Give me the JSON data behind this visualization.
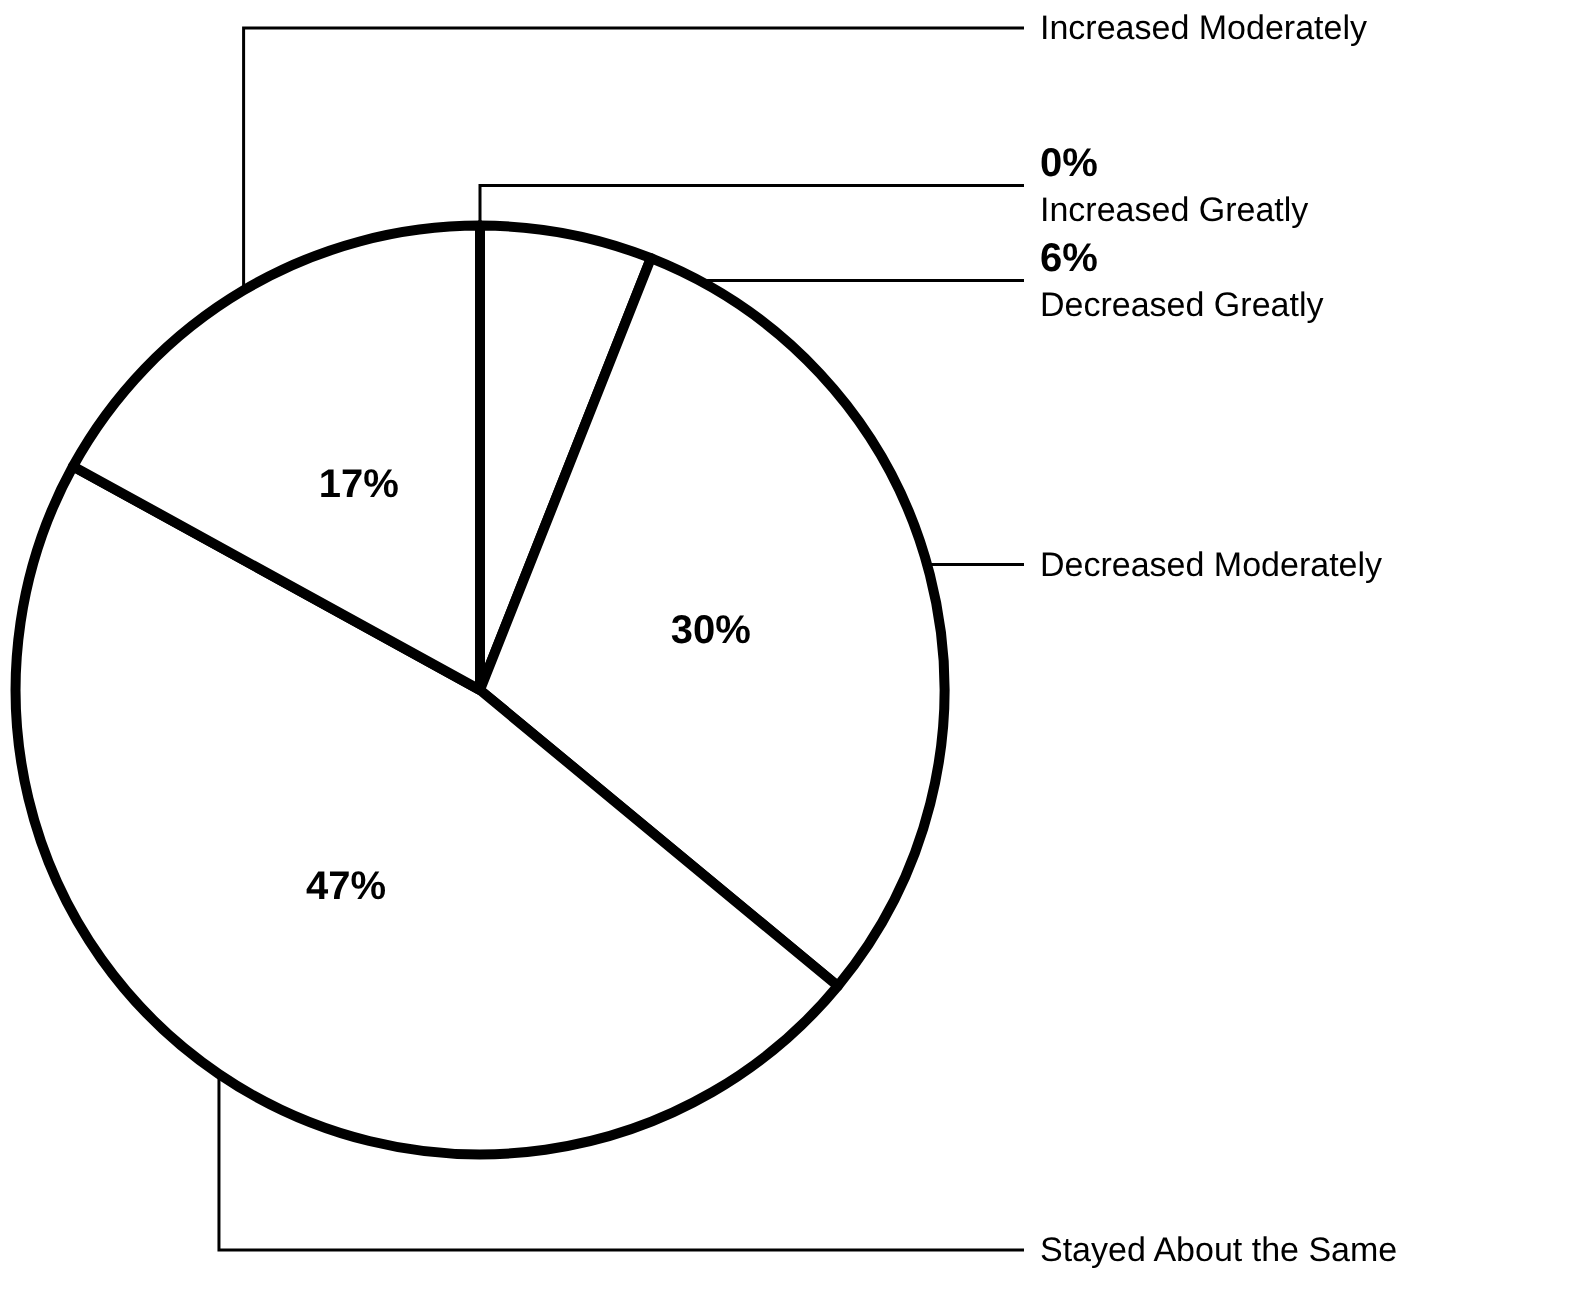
{
  "chart_data": {
    "type": "pie",
    "categories": [
      "Increased Greatly",
      "Decreased Greatly",
      "Decreased Moderately",
      "Stayed About the Same",
      "Increased Moderately"
    ],
    "values": [
      0,
      6,
      30,
      47,
      17
    ],
    "value_labels": [
      "0%",
      "6%",
      "30%",
      "47%",
      "17%"
    ],
    "colors": [
      "#ffffff",
      "#ffffff",
      "#ffffff",
      "#ffffff",
      "#ffffff"
    ],
    "legend": false
  }
}
